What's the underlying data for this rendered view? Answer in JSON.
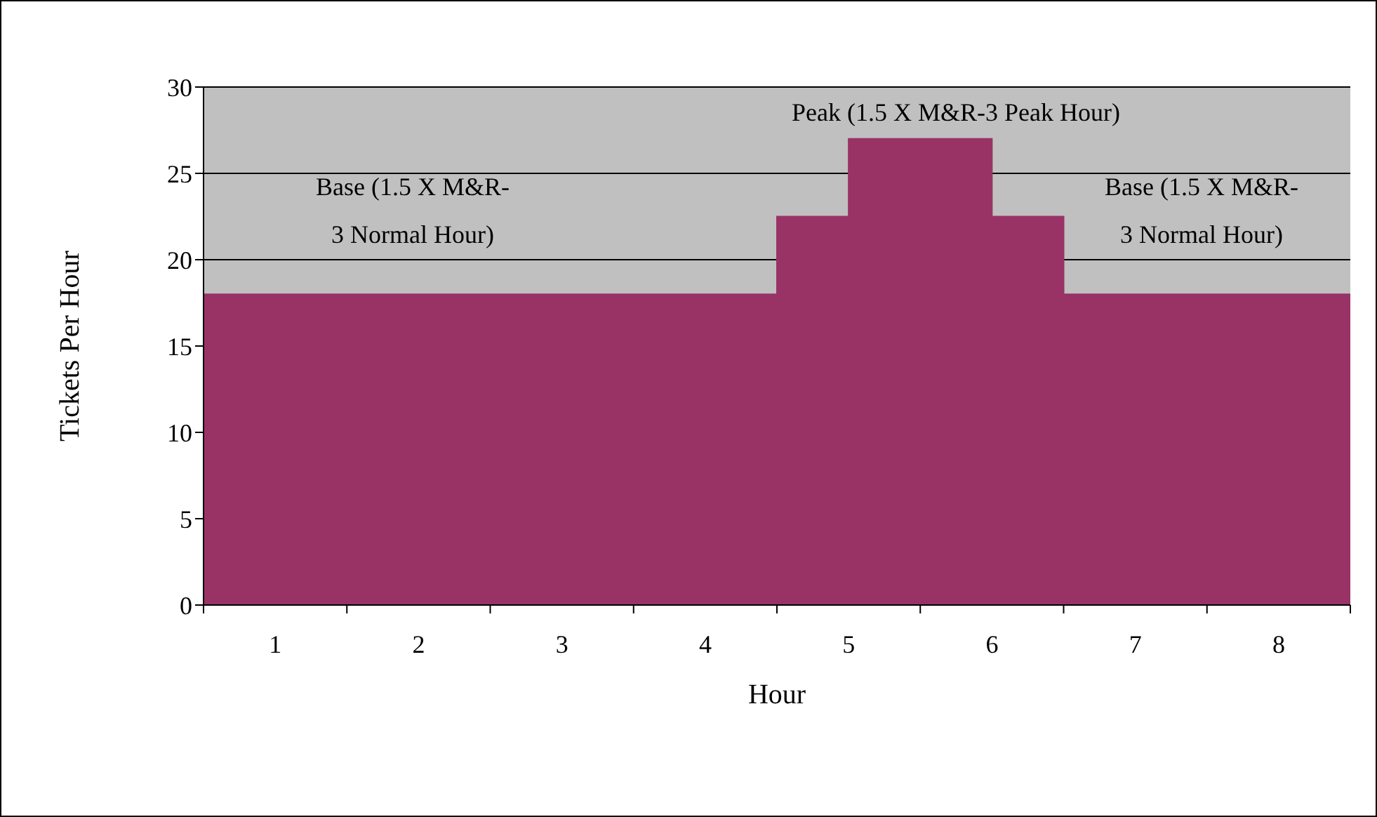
{
  "chart_data": {
    "type": "area",
    "xlabel": "Hour",
    "ylabel": "Tickets Per Hour",
    "x": [
      0,
      4,
      4,
      4.5,
      4.5,
      5.5,
      5.5,
      6,
      6,
      8
    ],
    "values": [
      18,
      18,
      22.5,
      22.5,
      27,
      27,
      22.5,
      22.5,
      18,
      18
    ],
    "color": "#993366",
    "xlim": [
      0,
      8
    ],
    "xticks": [
      {
        "value": 0,
        "label": null
      },
      {
        "value": 0.5,
        "label": "1"
      },
      {
        "value": 1,
        "label": null
      },
      {
        "value": 1.5,
        "label": "2"
      },
      {
        "value": 2,
        "label": null
      },
      {
        "value": 2.5,
        "label": "3"
      },
      {
        "value": 3,
        "label": null
      },
      {
        "value": 3.5,
        "label": "4"
      },
      {
        "value": 4,
        "label": null
      },
      {
        "value": 4.5,
        "label": "5"
      },
      {
        "value": 5,
        "label": null
      },
      {
        "value": 5.5,
        "label": "6"
      },
      {
        "value": 6,
        "label": null
      },
      {
        "value": 6.5,
        "label": "7"
      },
      {
        "value": 7,
        "label": null
      },
      {
        "value": 7.5,
        "label": "8"
      },
      {
        "value": 8,
        "label": null
      }
    ],
    "ylim": [
      0,
      30
    ],
    "yticks": [
      0,
      5,
      10,
      15,
      20,
      25,
      30
    ],
    "grid": "y",
    "annotations": [
      "Base (1.5 X M&R-3 Normal Hour)",
      "Peak (1.5 X M&R-3 Peak Hour)",
      "Base (1.5 X M&R-3 Normal Hour)"
    ]
  }
}
